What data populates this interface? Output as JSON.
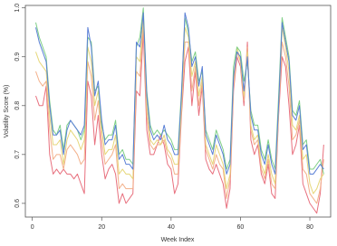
{
  "chart_data": {
    "type": "line",
    "xlabel": "Week Index",
    "ylabel": "Volatility Score (%)",
    "x": [
      1,
      2,
      3,
      4,
      5,
      6,
      7,
      8,
      9,
      10,
      11,
      12,
      13,
      14,
      15,
      16,
      17,
      18,
      19,
      20,
      21,
      22,
      23,
      24,
      25,
      26,
      27,
      28,
      29,
      30,
      31,
      32,
      33,
      34,
      35,
      36,
      37,
      38,
      39,
      40,
      41,
      42,
      43,
      44,
      45,
      46,
      47,
      48,
      49,
      50,
      51,
      52,
      53,
      54,
      55,
      56,
      57,
      58,
      59,
      60,
      61,
      62,
      63,
      64,
      65,
      66,
      67,
      68,
      69,
      70,
      71,
      72,
      73,
      74,
      75,
      76,
      77,
      78,
      79,
      80,
      81,
      82,
      83,
      84
    ],
    "series": [
      {
        "color": "#e8707e",
        "values": [
          0.82,
          0.8,
          0.8,
          0.84,
          0.7,
          0.66,
          0.67,
          0.66,
          0.67,
          0.66,
          0.66,
          0.65,
          0.66,
          0.64,
          0.62,
          0.85,
          0.82,
          0.72,
          0.78,
          0.7,
          0.65,
          0.67,
          0.68,
          0.66,
          0.6,
          0.62,
          0.6,
          0.61,
          0.62,
          0.83,
          0.82,
          0.95,
          0.75,
          0.7,
          0.7,
          0.72,
          0.74,
          0.72,
          0.68,
          0.67,
          0.62,
          0.64,
          0.78,
          0.89,
          0.92,
          0.8,
          0.87,
          0.78,
          0.84,
          0.69,
          0.67,
          0.66,
          0.68,
          0.66,
          0.64,
          0.59,
          0.63,
          0.83,
          0.9,
          0.88,
          0.8,
          0.93,
          0.73,
          0.7,
          0.72,
          0.66,
          0.64,
          0.68,
          0.62,
          0.61,
          0.78,
          0.9,
          0.88,
          0.8,
          0.7,
          0.72,
          0.76,
          0.64,
          0.62,
          0.6,
          0.59,
          0.58,
          0.62,
          0.72
        ]
      },
      {
        "color": "#f3b08a",
        "values": [
          0.87,
          0.85,
          0.84,
          0.85,
          0.75,
          0.69,
          0.7,
          0.7,
          0.67,
          0.71,
          0.72,
          0.71,
          0.7,
          0.68,
          0.69,
          0.89,
          0.86,
          0.77,
          0.81,
          0.73,
          0.68,
          0.69,
          0.7,
          0.72,
          0.63,
          0.64,
          0.63,
          0.63,
          0.63,
          0.87,
          0.86,
          0.97,
          0.78,
          0.72,
          0.71,
          0.72,
          0.72,
          0.73,
          0.7,
          0.69,
          0.66,
          0.66,
          0.79,
          0.93,
          0.93,
          0.83,
          0.88,
          0.8,
          0.85,
          0.71,
          0.69,
          0.67,
          0.7,
          0.68,
          0.67,
          0.61,
          0.65,
          0.84,
          0.91,
          0.89,
          0.81,
          0.92,
          0.75,
          0.72,
          0.73,
          0.67,
          0.65,
          0.69,
          0.64,
          0.63,
          0.79,
          0.93,
          0.9,
          0.84,
          0.73,
          0.74,
          0.77,
          0.67,
          0.66,
          0.62,
          0.61,
          0.6,
          0.63,
          0.69
        ]
      },
      {
        "color": "#e6d77a",
        "values": [
          0.91,
          0.89,
          0.88,
          0.87,
          0.78,
          0.72,
          0.72,
          0.73,
          0.68,
          0.73,
          0.75,
          0.74,
          0.73,
          0.71,
          0.73,
          0.92,
          0.89,
          0.8,
          0.83,
          0.75,
          0.7,
          0.71,
          0.71,
          0.74,
          0.66,
          0.67,
          0.66,
          0.66,
          0.65,
          0.9,
          0.89,
          0.98,
          0.8,
          0.73,
          0.72,
          0.73,
          0.72,
          0.74,
          0.71,
          0.7,
          0.68,
          0.68,
          0.8,
          0.96,
          0.94,
          0.86,
          0.89,
          0.82,
          0.86,
          0.72,
          0.7,
          0.68,
          0.72,
          0.7,
          0.68,
          0.63,
          0.66,
          0.85,
          0.92,
          0.89,
          0.82,
          0.91,
          0.76,
          0.73,
          0.74,
          0.68,
          0.66,
          0.7,
          0.66,
          0.64,
          0.79,
          0.96,
          0.92,
          0.87,
          0.76,
          0.75,
          0.78,
          0.69,
          0.7,
          0.64,
          0.62,
          0.63,
          0.65,
          0.66
        ]
      },
      {
        "color": "#7fcf86",
        "values": [
          0.97,
          0.94,
          0.92,
          0.9,
          0.81,
          0.75,
          0.74,
          0.76,
          0.71,
          0.76,
          0.77,
          0.76,
          0.75,
          0.73,
          0.75,
          0.94,
          0.93,
          0.83,
          0.84,
          0.76,
          0.73,
          0.74,
          0.74,
          0.77,
          0.7,
          0.71,
          0.69,
          0.69,
          0.68,
          0.92,
          0.94,
          1.0,
          0.83,
          0.76,
          0.74,
          0.75,
          0.74,
          0.75,
          0.74,
          0.73,
          0.71,
          0.71,
          0.83,
          0.98,
          0.95,
          0.89,
          0.91,
          0.85,
          0.87,
          0.75,
          0.73,
          0.71,
          0.75,
          0.73,
          0.71,
          0.67,
          0.69,
          0.88,
          0.92,
          0.91,
          0.85,
          0.89,
          0.79,
          0.76,
          0.76,
          0.71,
          0.69,
          0.73,
          0.69,
          0.67,
          0.82,
          0.98,
          0.94,
          0.9,
          0.79,
          0.78,
          0.81,
          0.72,
          0.73,
          0.67,
          0.67,
          0.68,
          0.69,
          0.66
        ]
      },
      {
        "color": "#5a7fd6",
        "values": [
          0.96,
          0.93,
          0.91,
          0.89,
          0.8,
          0.74,
          0.74,
          0.75,
          0.7,
          0.75,
          0.77,
          0.76,
          0.75,
          0.74,
          0.76,
          0.96,
          0.92,
          0.82,
          0.85,
          0.77,
          0.72,
          0.73,
          0.73,
          0.76,
          0.69,
          0.7,
          0.68,
          0.68,
          0.67,
          0.93,
          0.92,
          0.99,
          0.82,
          0.75,
          0.73,
          0.74,
          0.73,
          0.76,
          0.73,
          0.72,
          0.7,
          0.7,
          0.82,
          0.99,
          0.96,
          0.88,
          0.9,
          0.84,
          0.88,
          0.74,
          0.72,
          0.7,
          0.74,
          0.72,
          0.7,
          0.66,
          0.68,
          0.86,
          0.91,
          0.9,
          0.83,
          0.9,
          0.78,
          0.75,
          0.75,
          0.7,
          0.68,
          0.72,
          0.68,
          0.66,
          0.8,
          0.97,
          0.93,
          0.89,
          0.78,
          0.77,
          0.8,
          0.71,
          0.72,
          0.66,
          0.66,
          0.67,
          0.68,
          0.67
        ]
      }
    ],
    "xlim": [
      -2,
      86
    ],
    "xticks": [
      0,
      20,
      40,
      60,
      80
    ],
    "ylim": [
      0.572,
      1.005
    ],
    "yticks": [
      0.6,
      0.7,
      0.8,
      0.9,
      {
        "value": 1,
        "label": "1.0"
      }
    ]
  }
}
